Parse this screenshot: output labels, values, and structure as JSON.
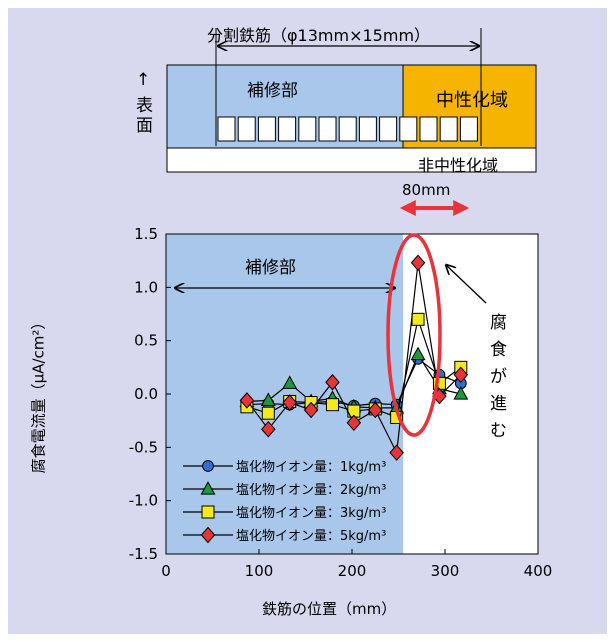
{
  "colors": {
    "background": "#d8d8ee",
    "repair_zone": "#a9c7ea",
    "neutralized_zone": "#f5b400",
    "plain": "#ffffff",
    "arrow_red": "#e8333a",
    "ellipse_red": "#e8333a"
  },
  "schematic": {
    "split_bar_label": "分割鉄筋（φ13mm×15mm）",
    "repair_label": "補修部",
    "neutralized_label": "中性化域",
    "non_neutralized_label": "非中性化域",
    "surface_label": "表面",
    "surface_arrow": "↑",
    "distance_label": "80mm"
  },
  "chart_data": {
    "type": "line",
    "xlabel": "鉄筋の位置（mm）",
    "ylabel": "腐食電流量（μA/cm²）",
    "xlim": [
      0,
      400
    ],
    "ylim": [
      -1.5,
      1.5
    ],
    "x_ticks": [
      "0",
      "100",
      "200",
      "300",
      "400"
    ],
    "y_ticks": [
      "1.5",
      "1.0",
      "0.5",
      "0.0",
      "-0.5",
      "-1.0",
      "-1.5"
    ],
    "grid": false,
    "legend_position": "bottom-left",
    "repair_zone_range": [
      0,
      255
    ],
    "x": [
      87,
      110,
      133,
      156,
      179,
      202,
      225,
      248,
      271,
      294,
      317
    ],
    "series": [
      {
        "name": "塩化物イオン量：1kg/m³",
        "marker": "circle",
        "color": "#2f6fd0",
        "values": [
          -0.1,
          -0.09,
          -0.1,
          -0.08,
          -0.07,
          -0.11,
          -0.09,
          -0.1,
          0.33,
          0.18,
          0.1
        ]
      },
      {
        "name": "塩化物イオン量：2kg/m³",
        "marker": "triangle",
        "color": "#1a9a3c",
        "values": [
          -0.07,
          -0.06,
          0.1,
          -0.07,
          -0.04,
          -0.12,
          -0.13,
          -0.13,
          0.37,
          0.05,
          0.0
        ]
      },
      {
        "name": "塩化物イオン量：3kg/m³",
        "marker": "square",
        "color": "#f2ea1c",
        "values": [
          -0.12,
          -0.18,
          -0.07,
          -0.08,
          -0.1,
          -0.16,
          -0.14,
          -0.22,
          0.7,
          0.1,
          0.25
        ]
      },
      {
        "name": "塩化物イオン量：5kg/m³",
        "marker": "diamond",
        "color": "#e8333a",
        "values": [
          -0.06,
          -0.33,
          -0.08,
          -0.15,
          0.11,
          -0.27,
          -0.15,
          -0.55,
          1.23,
          -0.02,
          0.18
        ]
      }
    ],
    "annotations": {
      "repair_label": "補修部",
      "corrosion_label": [
        "腐",
        "食",
        "が",
        "進",
        "む"
      ]
    }
  }
}
